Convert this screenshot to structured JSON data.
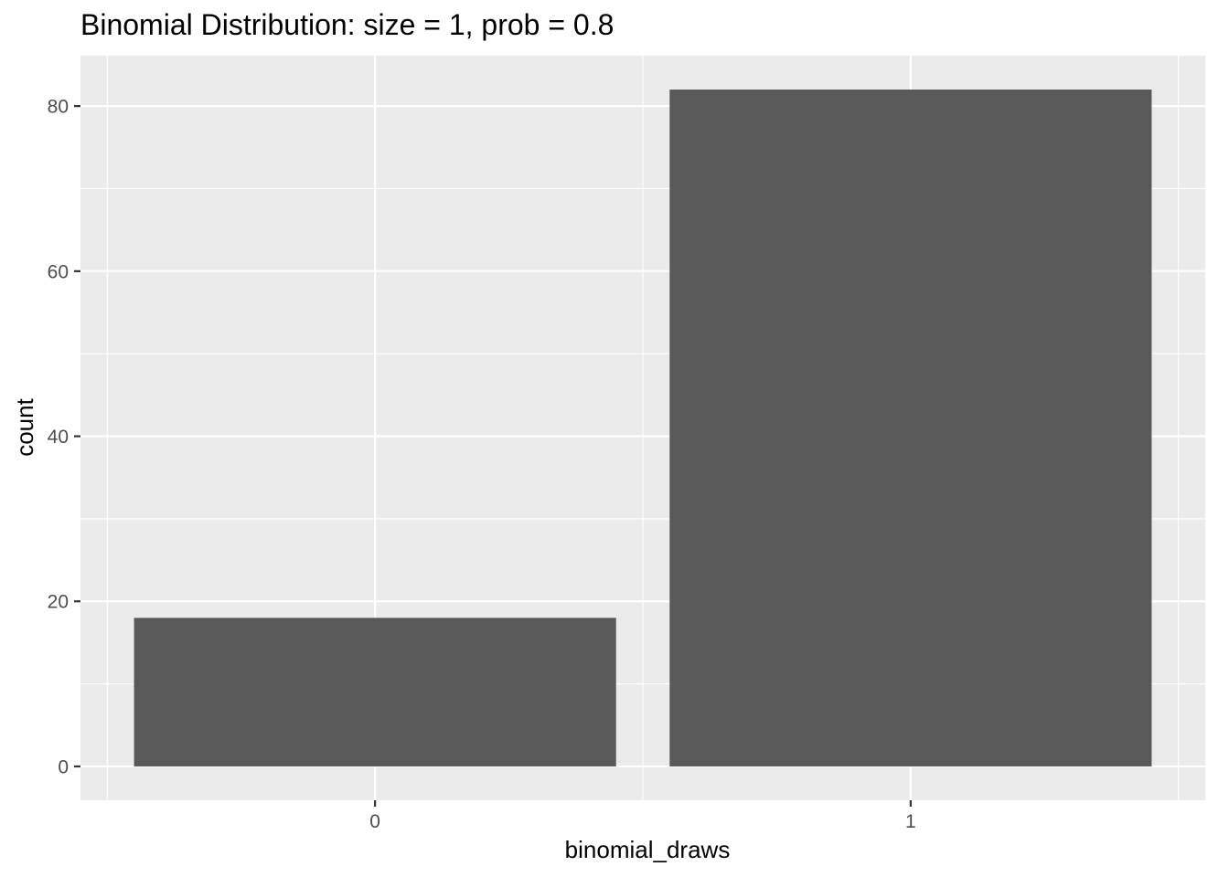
{
  "chart_data": {
    "type": "bar",
    "title": "Binomial Distribution: size = 1, prob = 0.8",
    "xlabel": "binomial_draws",
    "ylabel": "count",
    "categories": [
      "0",
      "1"
    ],
    "values": [
      18,
      82
    ],
    "ylim": [
      -4.1,
      86.1
    ],
    "yticks": [
      0,
      20,
      40,
      60,
      80
    ],
    "yticks_minor": [
      10,
      30,
      50,
      70
    ],
    "xlim": [
      -0.55,
      1.55
    ],
    "grid": true,
    "legend": "none",
    "colors": {
      "panel_background": "#ebebeb",
      "grid": "#ffffff",
      "bar_fill": "#595959",
      "tick_mark": "#333333",
      "tick_label": "#4d4d4d"
    }
  }
}
